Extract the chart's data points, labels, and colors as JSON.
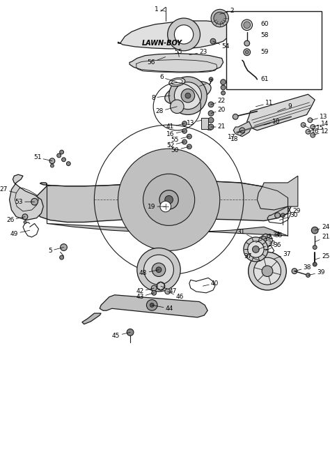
{
  "bg": "#ffffff",
  "lc": "#1a1a1a",
  "gray_light": "#d8d8d8",
  "gray_mid": "#b0b0b0",
  "gray_dark": "#888888",
  "white": "#ffffff"
}
